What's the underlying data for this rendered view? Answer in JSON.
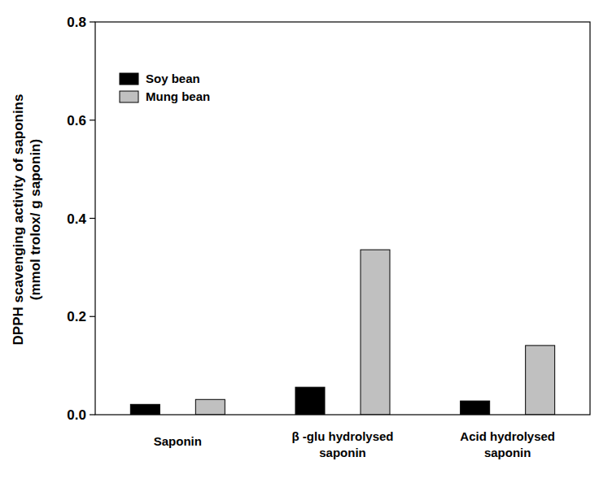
{
  "chart_data": {
    "type": "bar",
    "y_label": "DPPH scavenging activity of saponins\n(mmol trolox/ g saponin)",
    "categories": [
      "Saponin",
      "β -glu hydrolysed\nsaponin",
      "Acid hydrolysed\nsaponin"
    ],
    "series": [
      {
        "name": "Soy bean",
        "color": "#000000",
        "values": [
          0.021,
          0.056,
          0.028
        ]
      },
      {
        "name": "Mung bean",
        "color": "#c0c0c0",
        "values": [
          0.031,
          0.336,
          0.141
        ]
      }
    ],
    "ylim": [
      0,
      0.8
    ],
    "yticks": [
      {
        "value": 0,
        "label": "0.0"
      },
      {
        "value": 0.2,
        "label": "0.2"
      },
      {
        "value": 0.4,
        "label": "0.4"
      },
      {
        "value": 0.6,
        "label": "0.6"
      },
      {
        "value": 0.8,
        "label": "0.8"
      }
    ],
    "grid": false,
    "legend": "upper left"
  }
}
